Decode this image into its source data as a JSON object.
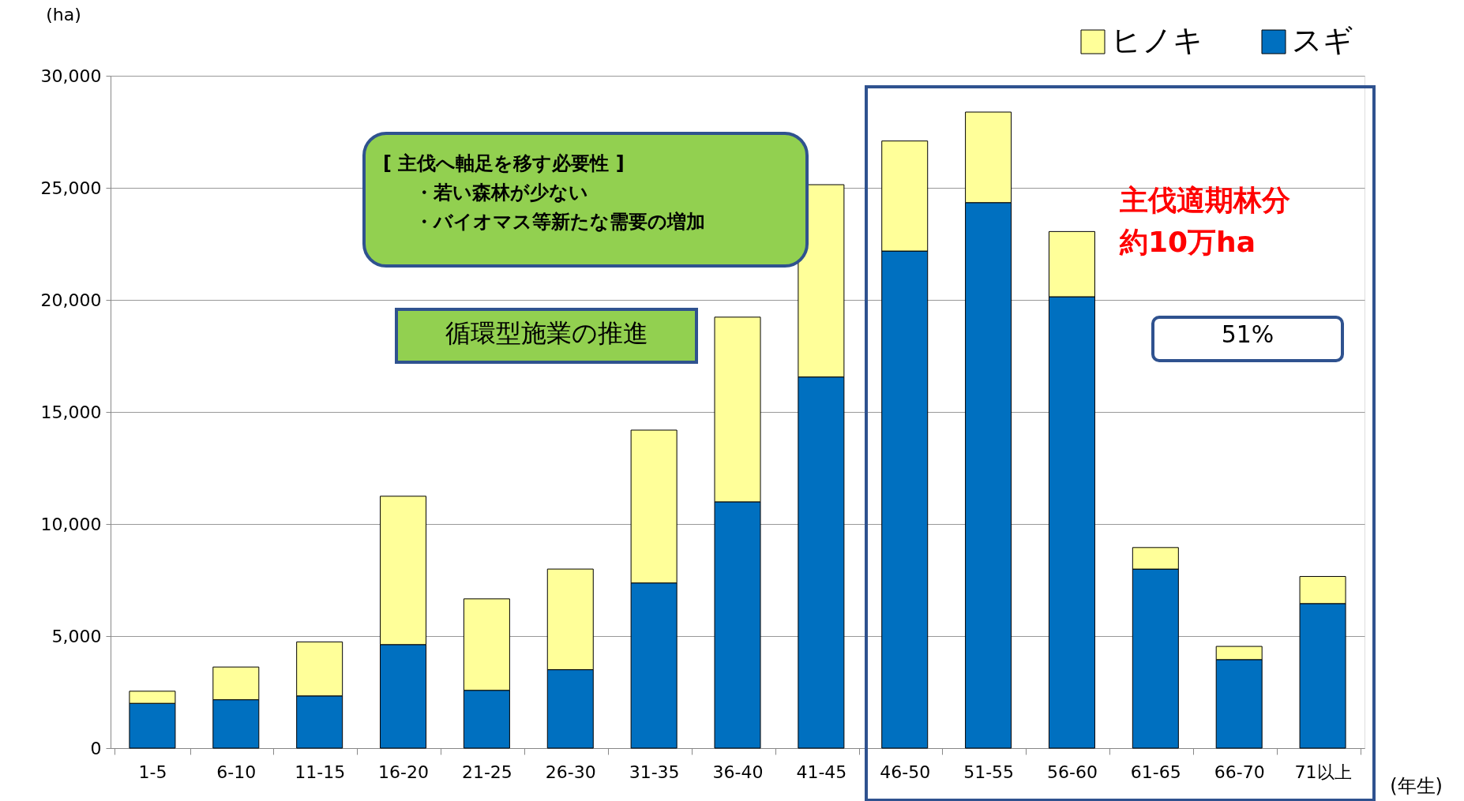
{
  "chart_data": {
    "type": "bar",
    "stacked": true,
    "ylabel": "(ha)",
    "xlabel": "(年生)",
    "categories": [
      "1-5",
      "6-10",
      "11-15",
      "16-20",
      "21-25",
      "26-30",
      "31-35",
      "36-40",
      "41-45",
      "46-50",
      "51-55",
      "56-60",
      "61-65",
      "66-70",
      "71以上"
    ],
    "series": [
      {
        "name": "スギ",
        "color": "#0070c0",
        "values": [
          2000,
          2160,
          2330,
          4620,
          2580,
          3500,
          7370,
          10990,
          16560,
          22180,
          24340,
          20140,
          7990,
          3950,
          6450
        ]
      },
      {
        "name": "ヒノキ",
        "color": "#ffff99",
        "values": [
          540,
          1460,
          2410,
          6620,
          4080,
          4490,
          6820,
          8240,
          8580,
          4910,
          4040,
          2910,
          960,
          590,
          1210
        ]
      }
    ],
    "ylim": [
      0,
      30000
    ],
    "yticks": [
      {
        "value": 0,
        "label": "0"
      },
      {
        "value": 5000,
        "label": "5,000"
      },
      {
        "value": 10000,
        "label": "10,000"
      },
      {
        "value": 15000,
        "label": "15,000"
      },
      {
        "value": 20000,
        "label": "20,000"
      },
      {
        "value": 25000,
        "label": "25,000"
      },
      {
        "value": 30000,
        "label": "30,000"
      }
    ],
    "grid": "y",
    "legend": "top right",
    "annotations": [
      "[ 主伐へ軸足を移す必要性 ]",
      "・若い森林が少ない",
      "・バイオマス等新たな需要の増加",
      "循環型施業の推進",
      "主伐適期林分",
      "約10万ha",
      "51%"
    ]
  }
}
